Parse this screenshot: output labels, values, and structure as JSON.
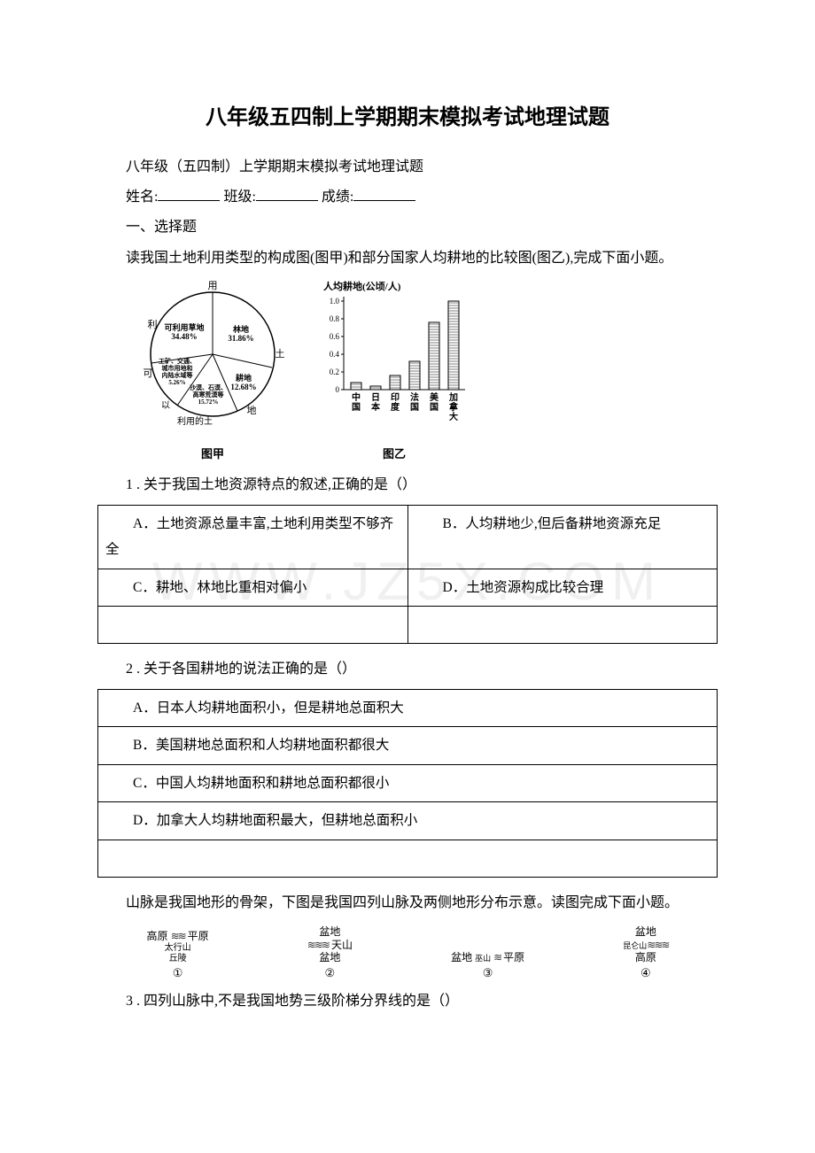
{
  "watermark": "WWW.JZ5X.COM",
  "title": "八年级五四制上学期期末模拟考试地理试题",
  "subtitle": "八年级（五四制）上学期期末模拟考试地理试题",
  "form": {
    "name_label": "姓名:",
    "class_label": "班级:",
    "score_label": "成绩:"
  },
  "section1": "一、选择题",
  "intro1": "读我国土地利用类型的构成图(图甲)和部分国家人均耕地的比较图(图乙),完成下面小题。",
  "pie": {
    "top": "用",
    "right": "土",
    "bottom_right": "地",
    "bottom": "利用的土",
    "left_top": "利",
    "left_bottom": "可",
    "seg_grass": {
      "l1": "可利用草地",
      "l2": "34.48%"
    },
    "seg_forest": {
      "l1": "林地",
      "l2": "31.86%"
    },
    "seg_arable": {
      "l1": "耕地",
      "l2": "12.68%"
    },
    "seg_industry": {
      "l1": "工矿、交通、",
      "l2": "城市用地和",
      "l3": "内陆水域等",
      "l4": "5.26%"
    },
    "seg_other": {
      "l1": "沙漠、石漠、",
      "l2": "高寒荒漠等",
      "l3": "15.72%"
    },
    "caption": "图甲"
  },
  "bar": {
    "ylabel": "人均耕地(公顷/人)",
    "ticks": [
      "1.0",
      "0.8",
      "0.6",
      "0.4",
      "0.2",
      "0"
    ],
    "cats": [
      "中国",
      "日本",
      "印度",
      "法国",
      "美国",
      "加拿大"
    ],
    "values": [
      0.08,
      0.04,
      0.16,
      0.32,
      0.76,
      1.0
    ],
    "caption": "图乙"
  },
  "q1": {
    "stem": "1 . 关于我国土地资源特点的叙述,正确的是（）",
    "a": "A．土地资源总量丰富,土地利用类型不够齐全",
    "b": "B．人均耕地少,但后备耕地资源充足",
    "c": "C．耕地、林地比重相对偏小",
    "d": "D．土地资源构成比较合理"
  },
  "q2": {
    "stem": "2 . 关于各国耕地的说法正确的是（）",
    "a": "A．日本人均耕地面积小，但是耕地总面积大",
    "b": "B．美国耕地总面积和人均耕地面积都很大",
    "c": "C．中国人均耕地面积和耕地总面积都很小",
    "d": "D．加拿大人均耕地面积最大，但耕地总面积小"
  },
  "intro2": "山脉是我国地形的骨架，下图是我国四列山脉及两侧地形分布示意。读图完成下面小题。",
  "mtn": {
    "m1": {
      "left": "高原",
      "center_top": "太行山",
      "right": "平原",
      "bottom": "丘陵",
      "num": "①"
    },
    "m2": {
      "top": "盆地",
      "center": "天山",
      "bottom": "盆地",
      "num": "②"
    },
    "m3": {
      "left": "盆地",
      "center": "巫山",
      "right": "平原",
      "num": "③"
    },
    "m4": {
      "top": "盆地",
      "center": "昆仑山",
      "bottom": "高原",
      "num": "④"
    }
  },
  "q3": {
    "stem": "3 . 四列山脉中,不是我国地势三级阶梯分界线的是（）"
  }
}
